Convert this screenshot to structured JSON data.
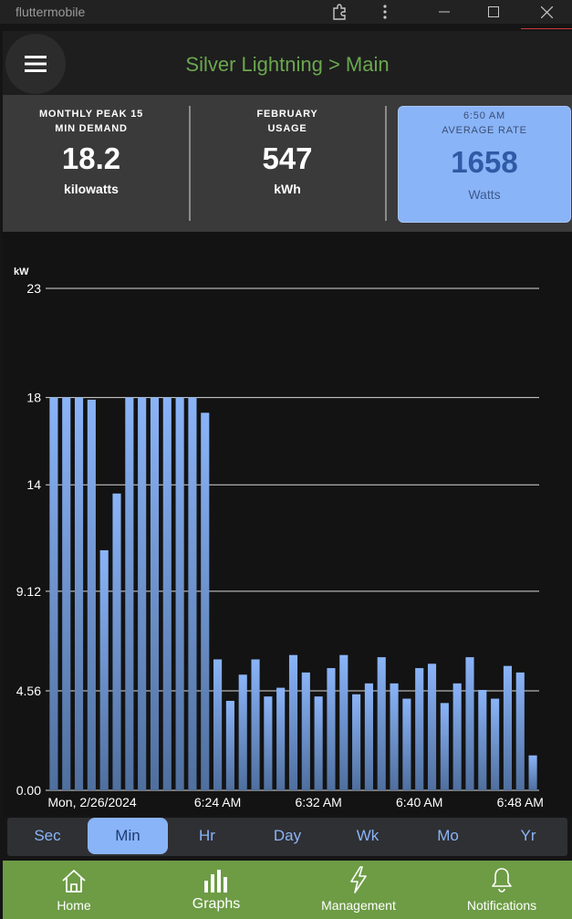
{
  "window": {
    "title": "fluttermobile"
  },
  "appbar": {
    "title": "Silver Lightning > Main"
  },
  "stats": {
    "peak": {
      "label_line1": "MONTHLY PEAK 15",
      "label_line2": "MIN DEMAND",
      "value": "18.2",
      "unit": "kilowatts"
    },
    "usage": {
      "label_line1": "FEBRUARY",
      "label_line2": "USAGE",
      "value": "547",
      "unit": "kWh"
    },
    "rate": {
      "label_line1": "6:50 AM",
      "label_line2": "AVERAGE RATE",
      "value": "1658",
      "unit": "Watts"
    }
  },
  "chart_data": {
    "type": "bar",
    "ylabel": "kW",
    "ylim": [
      0,
      23
    ],
    "y_ticks": [
      {
        "value": 0,
        "label": "0.00"
      },
      {
        "value": 4.56,
        "label": "4.56"
      },
      {
        "value": 9.12,
        "label": "9.12"
      },
      {
        "value": 14,
        "label": "14"
      },
      {
        "value": 18,
        "label": "18"
      },
      {
        "value": 23,
        "label": "23"
      }
    ],
    "x_ticks": [
      {
        "index": 0,
        "label": "Mon, 2/26/2024"
      },
      {
        "index": 13,
        "label": "6:24 AM"
      },
      {
        "index": 21,
        "label": "6:32 AM"
      },
      {
        "index": 29,
        "label": "6:40 AM"
      },
      {
        "index": 37,
        "label": "6:48 AM"
      }
    ],
    "values": [
      18.0,
      18.0,
      18.0,
      17.9,
      11.0,
      13.6,
      18.0,
      18.0,
      18.0,
      18.0,
      18.0,
      18.0,
      17.3,
      6.0,
      4.1,
      5.3,
      6.0,
      4.3,
      4.7,
      6.2,
      5.4,
      4.3,
      5.6,
      6.2,
      4.4,
      4.9,
      6.1,
      4.9,
      4.2,
      5.6,
      5.8,
      4.0,
      4.9,
      6.1,
      4.6,
      4.2,
      5.7,
      5.4,
      1.6
    ],
    "grid": true,
    "bar_color": "#8ab4f8"
  },
  "tabs": {
    "items": [
      "Sec",
      "Min",
      "Hr",
      "Day",
      "Wk",
      "Mo",
      "Yr"
    ],
    "selected": "Min"
  },
  "bottomnav": {
    "items": [
      "Home",
      "Graphs",
      "Management",
      "Notifications"
    ],
    "selected": "Graphs"
  },
  "colors": {
    "accent": "#8ab4f8",
    "brand_green": "#6d9c45",
    "title_green": "#6aa84f"
  }
}
